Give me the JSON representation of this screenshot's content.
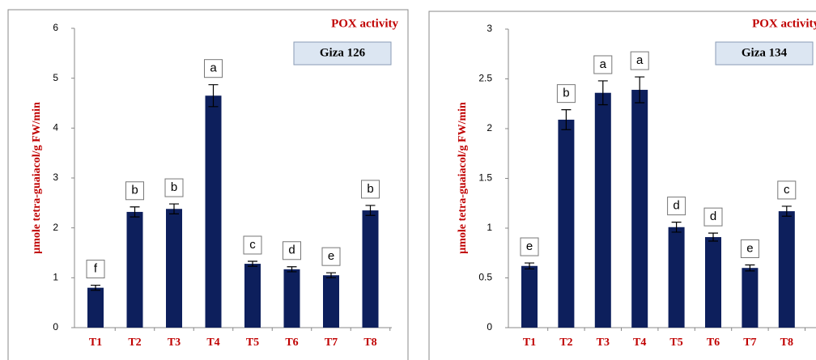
{
  "chart_data": [
    {
      "type": "bar",
      "title": "POX activity",
      "subtitle": "Giza 126",
      "y_label": "µmole tetra-guaiacol/g FW/min",
      "categories": [
        "T1",
        "T2",
        "T3",
        "T4",
        "T5",
        "T6",
        "T7",
        "T8"
      ],
      "values": [
        0.8,
        2.32,
        2.38,
        4.65,
        1.28,
        1.17,
        1.05,
        2.35
      ],
      "errors": [
        0.05,
        0.1,
        0.1,
        0.22,
        0.05,
        0.05,
        0.05,
        0.1
      ],
      "annotations": [
        "f",
        "b",
        "b",
        "a",
        "c",
        "d",
        "e",
        "b"
      ],
      "color": "#0d1f5c",
      "ylim": [
        0,
        6
      ],
      "yticks": [
        0,
        1,
        2,
        3,
        4,
        5,
        6
      ]
    },
    {
      "type": "bar",
      "title": "POX activity",
      "subtitle": "Giza 134",
      "y_label": "µmole tetra-guaiacol/g FW/min",
      "categories": [
        "T1",
        "T2",
        "T3",
        "T4",
        "T5",
        "T6",
        "T7",
        "T8"
      ],
      "values": [
        0.62,
        2.09,
        2.36,
        2.39,
        1.01,
        0.91,
        0.6,
        1.17
      ],
      "errors": [
        0.03,
        0.1,
        0.12,
        0.13,
        0.05,
        0.04,
        0.03,
        0.05
      ],
      "annotations": [
        "e",
        "b",
        "a",
        "a",
        "d",
        "d",
        "e",
        "c"
      ],
      "color": "#0d1f5c",
      "ylim": [
        0,
        3
      ],
      "yticks": [
        0,
        0.5,
        1,
        1.5,
        2,
        2.5,
        3
      ]
    }
  ]
}
